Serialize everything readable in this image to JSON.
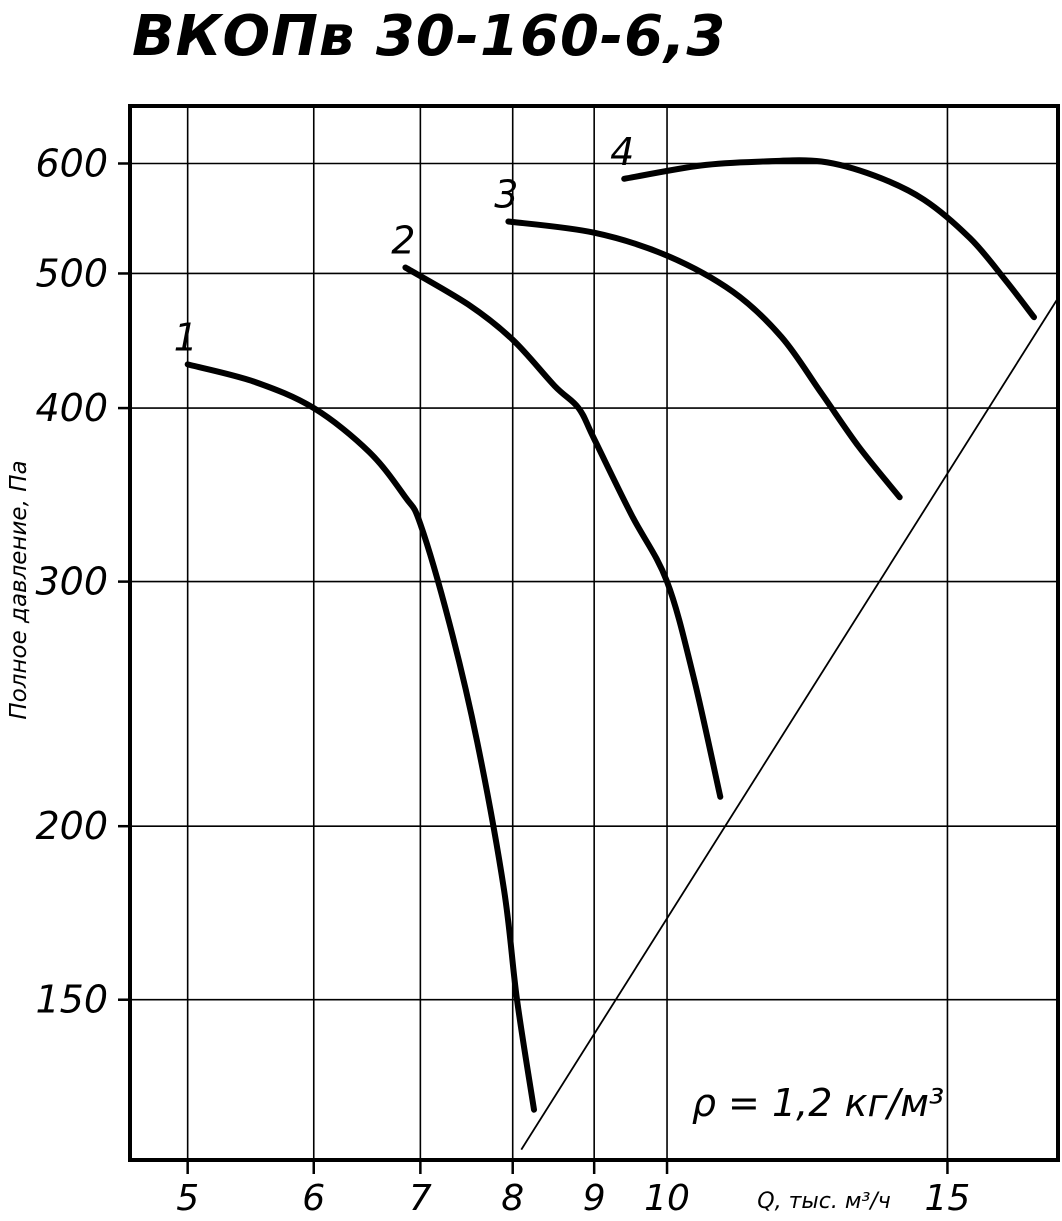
{
  "chart_data": {
    "type": "line",
    "title": "ВКОПв 30-160-6,3",
    "ylabel": "Полное давление, Па",
    "xlabel": "Q, тыс. м³/ч",
    "density_note": "ρ = 1,2 кг/м³",
    "x_scale": "log",
    "y_scale": "log",
    "xlim": [
      4.6,
      17.6
    ],
    "ylim": [
      115,
      660
    ],
    "x_ticks": [
      5,
      6,
      7,
      8,
      9,
      10,
      15
    ],
    "x_tick_labels": [
      "5",
      "6",
      "7",
      "8",
      "9",
      "10",
      "15"
    ],
    "y_ticks": [
      150,
      200,
      300,
      400,
      500,
      600
    ],
    "y_tick_labels": [
      "150",
      "200",
      "300",
      "400",
      "500",
      "600"
    ],
    "grid": true,
    "series": [
      {
        "name": "1",
        "x": [
          5.0,
          5.5,
          6.0,
          6.5,
          6.85,
          7.0,
          7.3,
          7.6,
          7.9,
          8.05,
          8.25
        ],
        "y": [
          430,
          418,
          400,
          372,
          345,
          330,
          280,
          230,
          180,
          150,
          125
        ]
      },
      {
        "name": "2",
        "x": [
          6.85,
          7.5,
          8.0,
          8.5,
          8.8,
          9.0,
          9.5,
          10.0,
          10.4,
          10.8
        ],
        "y": [
          505,
          475,
          448,
          415,
          400,
          380,
          335,
          300,
          255,
          210
        ]
      },
      {
        "name": "3",
        "x": [
          7.95,
          9.0,
          10.0,
          11.0,
          11.8,
          12.5,
          13.2,
          14.0
        ],
        "y": [
          545,
          535,
          515,
          485,
          450,
          410,
          375,
          345
        ]
      },
      {
        "name": "4",
        "x": [
          9.4,
          10.5,
          11.5,
          12.5,
          13.5,
          14.5,
          15.5,
          16.3,
          17.0
        ],
        "y": [
          585,
          598,
          602,
          602,
          588,
          565,
          530,
          495,
          465
        ]
      }
    ],
    "system_line": {
      "x": [
        8.1,
        17.6
      ],
      "y": [
        117,
        480
      ]
    }
  }
}
